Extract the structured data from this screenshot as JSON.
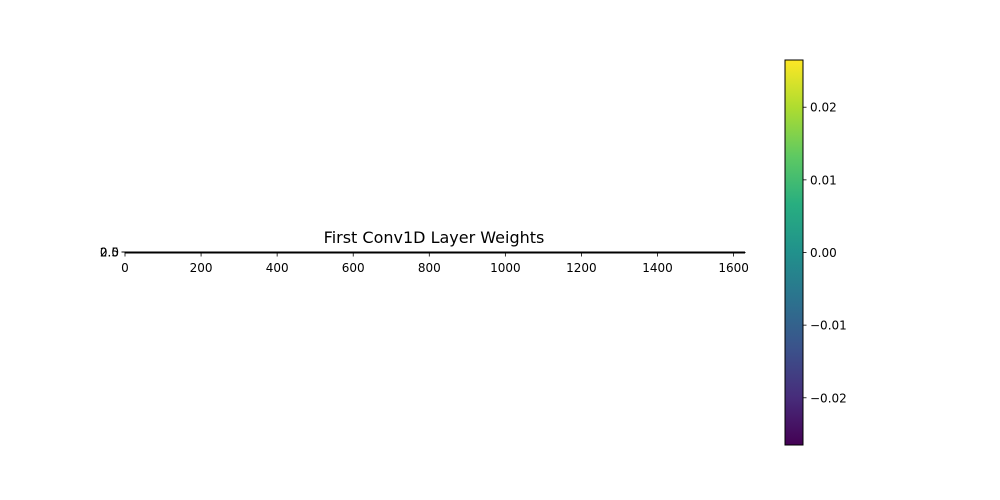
{
  "chart_data": {
    "type": "heatmap",
    "title": "First Conv1D Layer Weights",
    "xlabel": "",
    "ylabel": "",
    "x_ticks": [
      0,
      200,
      400,
      600,
      800,
      1000,
      1200,
      1400,
      1600
    ],
    "x_range": [
      0,
      1630
    ],
    "y_tick_labels": [
      "0.0",
      "2.5"
    ],
    "colormap": "viridis",
    "colorbar": {
      "range": [
        -0.0265,
        0.0265
      ],
      "ticks": [
        -0.02,
        -0.01,
        0.0,
        0.01,
        0.02
      ],
      "tick_labels": [
        "−0.02",
        "−0.01",
        "0.00",
        "0.01",
        "0.02"
      ]
    },
    "grid": false
  }
}
